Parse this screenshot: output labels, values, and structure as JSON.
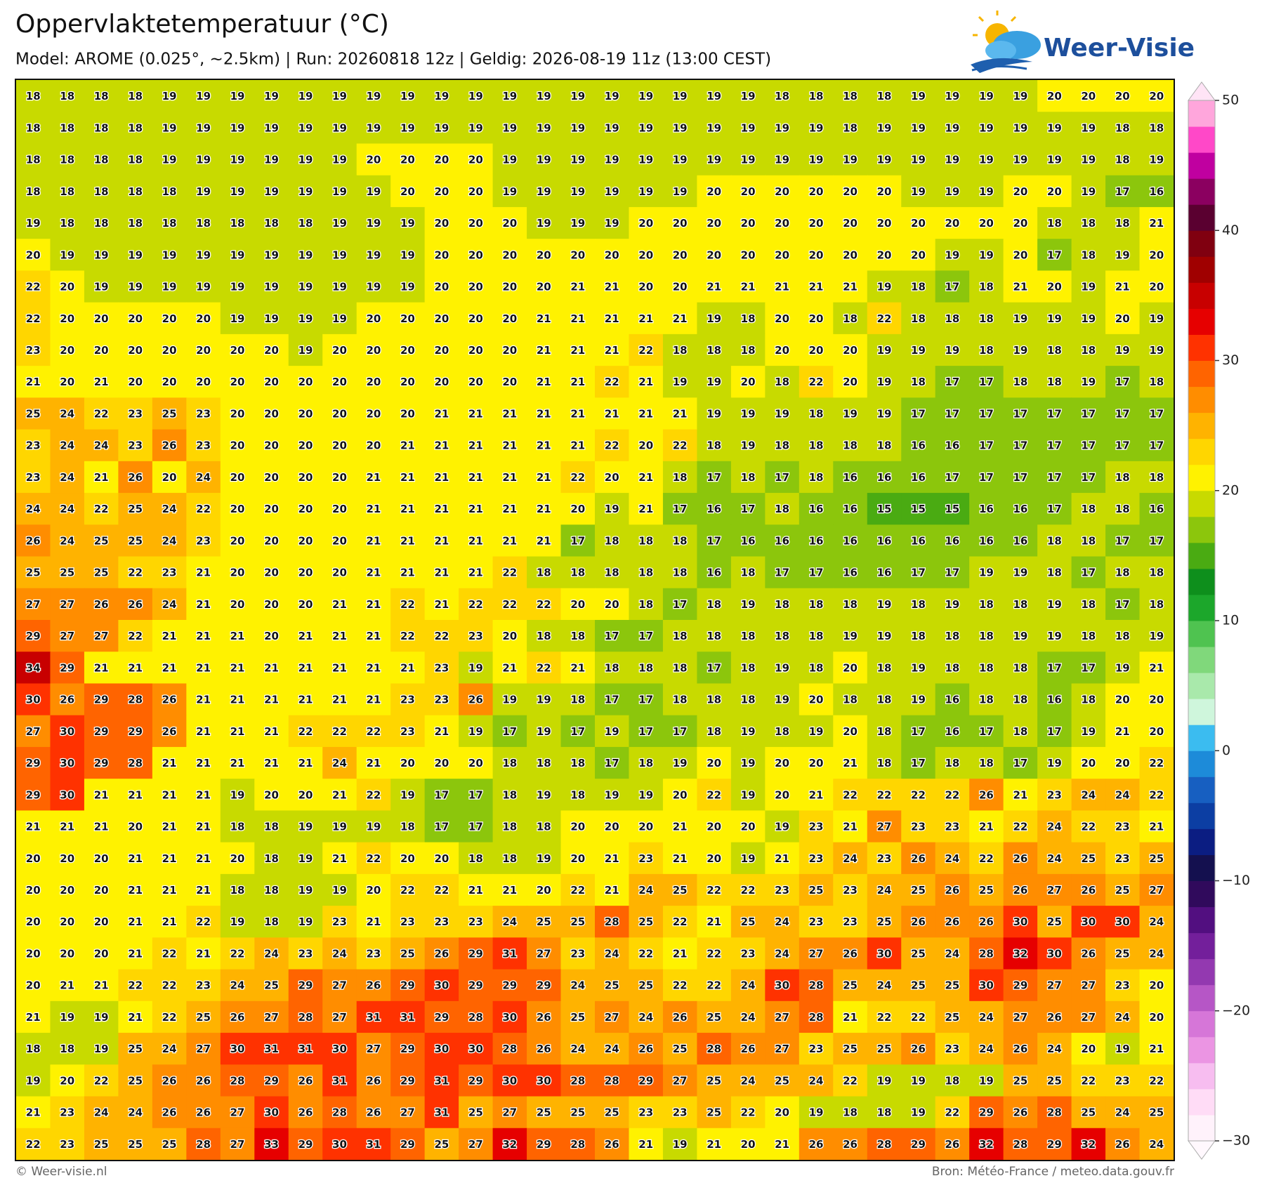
{
  "header": {
    "title": "Oppervlaktetemperatuur (°C)",
    "subtitle": "Model: AROME (0.025°, ~2.5km)  |  Run: 20260818 12z  |  Geldig: 2026-08-19 11z (13:00 CEST)"
  },
  "logo": {
    "text": "Weer-Visie"
  },
  "grid": {
    "rows": [
      [
        18,
        18,
        18,
        18,
        19,
        19,
        19,
        19,
        19,
        19,
        19,
        19,
        19,
        19,
        19,
        19,
        19,
        19,
        19,
        19,
        19,
        19,
        18,
        18,
        18,
        18,
        19,
        19,
        19,
        19,
        20,
        20,
        20,
        20
      ],
      [
        18,
        18,
        18,
        18,
        19,
        19,
        19,
        19,
        19,
        19,
        19,
        19,
        19,
        19,
        19,
        19,
        19,
        19,
        19,
        19,
        19,
        19,
        19,
        19,
        18,
        19,
        19,
        19,
        19,
        19,
        19,
        19,
        18,
        18
      ],
      [
        18,
        18,
        18,
        18,
        19,
        19,
        19,
        19,
        19,
        19,
        20,
        20,
        20,
        20,
        19,
        19,
        19,
        19,
        19,
        19,
        19,
        19,
        19,
        19,
        19,
        19,
        19,
        19,
        19,
        19,
        19,
        19,
        18,
        19
      ],
      [
        18,
        18,
        18,
        18,
        18,
        19,
        19,
        19,
        19,
        19,
        19,
        20,
        20,
        20,
        19,
        19,
        19,
        19,
        19,
        19,
        20,
        20,
        20,
        20,
        20,
        20,
        19,
        19,
        19,
        20,
        20,
        19,
        17,
        16
      ],
      [
        19,
        18,
        18,
        18,
        18,
        18,
        18,
        18,
        18,
        19,
        19,
        19,
        20,
        20,
        20,
        19,
        19,
        19,
        20,
        20,
        20,
        20,
        20,
        20,
        20,
        20,
        20,
        20,
        20,
        20,
        18,
        18,
        18,
        21
      ],
      [
        20,
        19,
        19,
        19,
        19,
        19,
        19,
        19,
        19,
        19,
        19,
        19,
        20,
        20,
        20,
        20,
        20,
        20,
        20,
        20,
        20,
        20,
        20,
        20,
        20,
        20,
        20,
        19,
        19,
        20,
        17,
        18,
        19,
        20
      ],
      [
        22,
        20,
        19,
        19,
        19,
        19,
        19,
        19,
        19,
        19,
        19,
        19,
        20,
        20,
        20,
        20,
        21,
        21,
        20,
        20,
        21,
        21,
        21,
        21,
        21,
        19,
        18,
        17,
        18,
        21,
        20,
        19,
        21,
        20
      ],
      [
        22,
        20,
        20,
        20,
        20,
        20,
        19,
        19,
        19,
        19,
        20,
        20,
        20,
        20,
        20,
        21,
        21,
        21,
        21,
        21,
        19,
        18,
        20,
        20,
        18,
        22,
        18,
        18,
        18,
        19,
        19,
        19,
        20,
        19
      ],
      [
        23,
        20,
        20,
        20,
        20,
        20,
        20,
        20,
        19,
        20,
        20,
        20,
        20,
        20,
        20,
        21,
        21,
        21,
        22,
        18,
        18,
        18,
        20,
        20,
        20,
        19,
        19,
        19,
        18,
        19,
        18,
        18,
        19,
        19
      ],
      [
        21,
        20,
        21,
        20,
        20,
        20,
        20,
        20,
        20,
        20,
        20,
        20,
        20,
        20,
        20,
        21,
        21,
        22,
        21,
        19,
        19,
        20,
        18,
        22,
        20,
        19,
        18,
        17,
        17,
        18,
        18,
        19,
        17,
        18
      ],
      [
        25,
        24,
        22,
        23,
        25,
        23,
        20,
        20,
        20,
        20,
        20,
        20,
        21,
        21,
        21,
        21,
        21,
        21,
        21,
        21,
        19,
        19,
        19,
        18,
        19,
        19,
        17,
        17,
        17,
        17,
        17,
        17,
        17,
        17
      ],
      [
        23,
        24,
        24,
        23,
        26,
        23,
        20,
        20,
        20,
        20,
        20,
        21,
        21,
        21,
        21,
        21,
        21,
        22,
        20,
        22,
        18,
        19,
        18,
        18,
        18,
        18,
        16,
        16,
        17,
        17,
        17,
        17,
        17,
        17
      ],
      [
        23,
        24,
        21,
        26,
        20,
        24,
        20,
        20,
        20,
        20,
        21,
        21,
        21,
        21,
        21,
        21,
        22,
        20,
        21,
        18,
        17,
        18,
        17,
        18,
        16,
        16,
        16,
        17,
        17,
        17,
        17,
        17,
        18,
        18
      ],
      [
        24,
        24,
        22,
        25,
        24,
        22,
        20,
        20,
        20,
        20,
        21,
        21,
        21,
        21,
        21,
        21,
        20,
        19,
        21,
        17,
        16,
        17,
        18,
        16,
        16,
        15,
        15,
        15,
        16,
        16,
        17,
        18,
        18,
        16
      ],
      [
        26,
        24,
        25,
        25,
        24,
        23,
        20,
        20,
        20,
        20,
        21,
        21,
        21,
        21,
        21,
        21,
        17,
        18,
        18,
        18,
        17,
        16,
        16,
        16,
        16,
        16,
        16,
        16,
        16,
        16,
        18,
        18,
        17,
        17
      ],
      [
        25,
        25,
        25,
        22,
        23,
        21,
        20,
        20,
        20,
        20,
        21,
        21,
        21,
        21,
        22,
        18,
        18,
        18,
        18,
        18,
        16,
        18,
        17,
        17,
        16,
        16,
        17,
        17,
        19,
        19,
        18,
        17,
        18,
        18
      ],
      [
        27,
        27,
        26,
        26,
        24,
        21,
        20,
        20,
        20,
        21,
        21,
        22,
        21,
        22,
        22,
        22,
        20,
        20,
        18,
        17,
        18,
        19,
        18,
        18,
        18,
        19,
        18,
        19,
        18,
        18,
        19,
        18,
        17,
        18
      ],
      [
        29,
        27,
        27,
        22,
        21,
        21,
        21,
        20,
        21,
        21,
        21,
        22,
        22,
        23,
        20,
        18,
        18,
        17,
        17,
        18,
        18,
        18,
        18,
        18,
        19,
        19,
        18,
        18,
        18,
        19,
        19,
        18,
        18,
        19
      ],
      [
        34,
        29,
        21,
        21,
        21,
        21,
        21,
        21,
        21,
        21,
        21,
        21,
        23,
        19,
        21,
        22,
        21,
        18,
        18,
        18,
        17,
        18,
        19,
        18,
        20,
        18,
        19,
        18,
        18,
        18,
        17,
        17,
        19,
        21
      ],
      [
        30,
        26,
        29,
        28,
        26,
        21,
        21,
        21,
        21,
        21,
        21,
        23,
        23,
        26,
        19,
        19,
        18,
        17,
        17,
        18,
        18,
        18,
        19,
        20,
        18,
        18,
        19,
        16,
        18,
        18,
        16,
        18,
        20,
        20
      ],
      [
        27,
        30,
        29,
        29,
        26,
        21,
        21,
        21,
        22,
        22,
        22,
        23,
        21,
        19,
        17,
        19,
        17,
        19,
        17,
        17,
        18,
        19,
        18,
        19,
        20,
        18,
        17,
        16,
        17,
        18,
        17,
        19,
        21,
        20
      ],
      [
        29,
        30,
        29,
        28,
        21,
        21,
        21,
        21,
        21,
        24,
        21,
        20,
        20,
        20,
        18,
        18,
        18,
        17,
        18,
        19,
        20,
        19,
        20,
        20,
        21,
        18,
        17,
        18,
        18,
        17,
        19,
        20,
        20,
        22
      ],
      [
        29,
        30,
        21,
        21,
        21,
        21,
        19,
        20,
        20,
        21,
        22,
        19,
        17,
        17,
        18,
        19,
        18,
        19,
        19,
        20,
        22,
        19,
        20,
        21,
        22,
        22,
        22,
        22,
        26,
        21,
        23,
        24,
        24,
        22
      ],
      [
        21,
        21,
        21,
        20,
        21,
        21,
        18,
        18,
        19,
        19,
        19,
        18,
        17,
        17,
        18,
        18,
        20,
        20,
        20,
        21,
        20,
        20,
        19,
        23,
        21,
        27,
        23,
        23,
        21,
        22,
        24,
        22,
        23,
        21
      ],
      [
        20,
        20,
        20,
        21,
        21,
        21,
        20,
        18,
        19,
        21,
        22,
        20,
        20,
        18,
        18,
        19,
        20,
        21,
        23,
        21,
        20,
        19,
        21,
        23,
        24,
        23,
        26,
        24,
        22,
        26,
        24,
        25,
        23,
        25
      ],
      [
        20,
        20,
        20,
        21,
        21,
        21,
        18,
        18,
        19,
        19,
        20,
        22,
        22,
        21,
        21,
        20,
        22,
        21,
        24,
        25,
        22,
        22,
        23,
        25,
        23,
        24,
        25,
        26,
        25,
        26,
        27,
        26,
        25,
        27
      ],
      [
        20,
        20,
        20,
        21,
        21,
        22,
        19,
        18,
        19,
        23,
        21,
        23,
        23,
        23,
        24,
        25,
        25,
        28,
        25,
        22,
        21,
        25,
        24,
        23,
        23,
        25,
        26,
        26,
        26,
        30,
        25,
        30,
        30,
        24
      ],
      [
        20,
        20,
        20,
        21,
        22,
        21,
        22,
        24,
        23,
        24,
        23,
        25,
        26,
        29,
        31,
        27,
        23,
        24,
        22,
        21,
        22,
        23,
        24,
        27,
        26,
        30,
        25,
        24,
        28,
        32,
        30,
        26,
        25,
        24
      ],
      [
        20,
        21,
        21,
        22,
        22,
        23,
        24,
        25,
        29,
        27,
        26,
        29,
        30,
        29,
        29,
        29,
        24,
        25,
        25,
        22,
        22,
        24,
        30,
        28,
        25,
        24,
        25,
        25,
        30,
        29,
        27,
        27,
        23,
        20
      ],
      [
        21,
        19,
        19,
        21,
        22,
        25,
        26,
        27,
        28,
        27,
        31,
        31,
        29,
        28,
        30,
        26,
        25,
        27,
        24,
        26,
        25,
        24,
        27,
        28,
        21,
        22,
        22,
        25,
        24,
        27,
        26,
        27,
        24,
        20
      ],
      [
        18,
        18,
        19,
        25,
        24,
        27,
        30,
        31,
        31,
        30,
        27,
        29,
        30,
        30,
        28,
        26,
        24,
        24,
        26,
        25,
        28,
        26,
        27,
        23,
        25,
        25,
        26,
        23,
        24,
        26,
        24,
        20,
        19,
        21
      ],
      [
        19,
        20,
        22,
        25,
        26,
        26,
        28,
        29,
        26,
        31,
        26,
        29,
        31,
        29,
        30,
        30,
        28,
        28,
        29,
        27,
        25,
        24,
        25,
        24,
        22,
        19,
        19,
        18,
        19,
        25,
        25,
        22,
        23,
        22
      ],
      [
        21,
        23,
        24,
        24,
        26,
        26,
        27,
        30,
        26,
        28,
        26,
        27,
        31,
        25,
        27,
        25,
        25,
        25,
        23,
        23,
        25,
        22,
        20,
        19,
        18,
        18,
        19,
        22,
        29,
        26,
        28,
        25,
        24,
        25
      ],
      [
        22,
        23,
        25,
        25,
        25,
        28,
        27,
        33,
        29,
        30,
        31,
        29,
        25,
        27,
        32,
        29,
        28,
        26,
        21,
        19,
        21,
        20,
        21,
        26,
        26,
        28,
        29,
        26,
        32,
        28,
        29,
        32,
        26,
        24
      ]
    ]
  },
  "colorbar": {
    "lim": [
      -30,
      50
    ],
    "ticks": [
      50,
      40,
      30,
      20,
      10,
      0,
      {
        "value": -10,
        "label": "−10"
      },
      {
        "value": -20,
        "label": "−20"
      },
      {
        "value": -30,
        "label": "−30"
      }
    ],
    "colors": [
      "#fff2fb",
      "#ffdcf6",
      "#f7bdf0",
      "#eb95e3",
      "#d676d8",
      "#b656c6",
      "#9339b0",
      "#731f9b",
      "#520f80",
      "#300a5c",
      "#14104f",
      "#0b1d82",
      "#0c3ea3",
      "#175fc1",
      "#1d8bd9",
      "#3bbcf0",
      "#cff6dc",
      "#a9e9ab",
      "#80d87b",
      "#4fc350",
      "#1ca72b",
      "#0e8f1c",
      "#4aab12",
      "#8cc60c",
      "#c8da00",
      "#fff200",
      "#ffd600",
      "#ffb300",
      "#ff8d00",
      "#ff6400",
      "#ff3200",
      "#e60000",
      "#c80000",
      "#a00000",
      "#800010",
      "#5a0030",
      "#8b0060",
      "#c000a0",
      "#ff48c8",
      "#ffa6dc"
    ]
  },
  "footer": {
    "left": "© Weer-visie.nl",
    "right": "Bron: Météo-France / meteo.data.gouv.fr"
  }
}
